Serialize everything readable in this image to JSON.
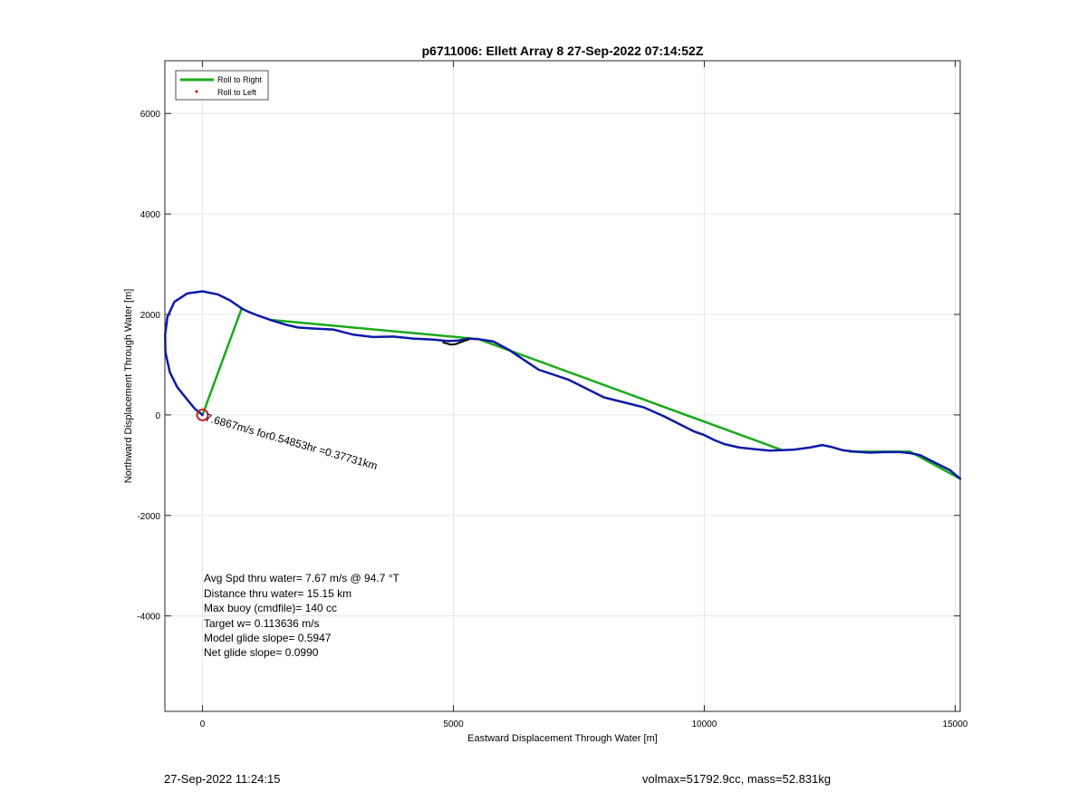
{
  "chart_data": {
    "type": "line",
    "title": "p6711006: Ellett Array 8 27-Sep-2022 07:14:52Z",
    "xlabel": "Eastward Displacement Through Water [m]",
    "ylabel": "Northward Displacement Through Water [m]",
    "xlim": [
      -750,
      15100
    ],
    "ylim": [
      -5900,
      7050
    ],
    "xticks": [
      0,
      5000,
      10000,
      15000
    ],
    "yticks": [
      -4000,
      -2000,
      0,
      2000,
      4000,
      6000
    ],
    "grid": true,
    "legend_position": "top-left",
    "legend": [
      {
        "label": "Roll to Right",
        "color": "#1aaa1a",
        "style": "line"
      },
      {
        "label": "Roll to Left",
        "color": "#dd0000",
        "style": "dot"
      }
    ],
    "series": [
      {
        "name": "Roll to Right",
        "color": "#1aaa1a",
        "segments": [
          {
            "x": [
              0,
              780
            ],
            "y": [
              0,
              2120
            ]
          },
          {
            "x": [
              1380,
              5500
            ],
            "y": [
              1890,
              1510
            ]
          },
          {
            "x": [
              5500,
              11550
            ],
            "y": [
              1510,
              -700
            ]
          },
          {
            "x": [
              12900,
              14100
            ],
            "y": [
              -730,
              -730
            ]
          },
          {
            "x": [
              14100,
              15100
            ],
            "y": [
              -730,
              -1270
            ]
          }
        ]
      },
      {
        "color": "#0b1aa8",
        "x": [
          0,
          -150,
          -300,
          -500,
          -650,
          -740,
          -745,
          -700,
          -560,
          -300,
          0,
          300,
          550,
          780,
          900,
          1100,
          1380,
          1650,
          1900,
          2200,
          2600,
          3000,
          3400,
          3800,
          4200,
          4600,
          4900,
          5100,
          5300,
          5500,
          5800,
          6100,
          6400,
          6700,
          7000,
          7300,
          7600,
          8000,
          8400,
          8800,
          9200,
          9600,
          9800,
          10000,
          10200,
          10400,
          10700,
          11000,
          11300,
          11550,
          11800,
          12100,
          12350,
          12550,
          12750,
          13000,
          13300,
          13600,
          13900,
          14100,
          14300,
          14600,
          14900,
          15100
        ],
        "y": [
          0,
          120,
          300,
          550,
          850,
          1250,
          1600,
          1950,
          2250,
          2420,
          2460,
          2400,
          2280,
          2120,
          2060,
          1980,
          1880,
          1800,
          1740,
          1720,
          1700,
          1600,
          1550,
          1560,
          1520,
          1500,
          1470,
          1480,
          1520,
          1510,
          1460,
          1300,
          1100,
          900,
          800,
          700,
          550,
          350,
          250,
          150,
          -30,
          -230,
          -330,
          -400,
          -500,
          -580,
          -650,
          -680,
          -710,
          -700,
          -690,
          -650,
          -600,
          -640,
          -700,
          -730,
          -750,
          -740,
          -740,
          -760,
          -800,
          -950,
          -1100,
          -1270
        ]
      },
      {
        "color": "#111111",
        "x": [
          4800,
          4950,
          5050,
          5150,
          5300
        ],
        "y": [
          1440,
          1400,
          1410,
          1450,
          1500
        ]
      }
    ],
    "start_marker": {
      "x": 0,
      "y": 0,
      "color": "#cc2222"
    },
    "annotations": [
      {
        "text": "7.6867m/s for0.54853hr =0.37731km",
        "x": 40,
        "y": -40,
        "rotation_deg": 16
      }
    ],
    "stats": [
      "Avg Spd thru water=  7.67 m/s @  94.7 °T",
      "Distance thru water= 15.15 km",
      "Max buoy (cmdfile)= 140 cc",
      "Target w= 0.113636 m/s",
      "Model glide slope= 0.5947",
      "Net glide slope= 0.0990"
    ]
  },
  "footer": {
    "timestamp": "27-Sep-2022 11:24:15",
    "info": "volmax=51792.9cc, mass=52.831kg"
  }
}
